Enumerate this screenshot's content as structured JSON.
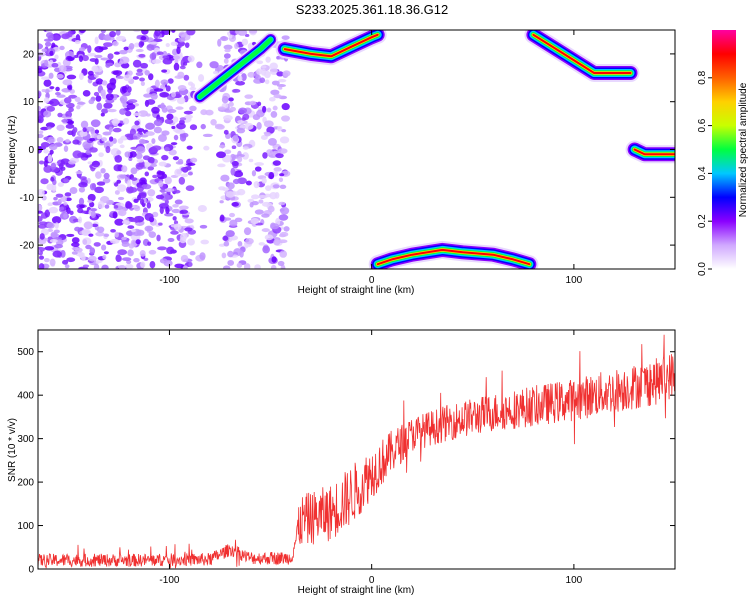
{
  "title": "S233.2025.361.18.36.G12",
  "chart_data": [
    {
      "type": "heatmap",
      "xlabel": "Height of straight line (km)",
      "ylabel": "Frequency (Hz)",
      "xlim": [
        -165,
        150
      ],
      "ylim": [
        -25,
        25
      ],
      "xticks": [
        -100,
        0,
        100
      ],
      "yticks": [
        -20,
        -10,
        0,
        10,
        20
      ],
      "colorbar": {
        "label": "Normalized spectral amplitude",
        "range": [
          0,
          1
        ],
        "ticks": [
          0.0,
          0.2,
          0.4,
          0.6,
          0.8
        ],
        "tick_labels": [
          "0.0",
          "0.2",
          "0.4",
          "0.6",
          "0.8"
        ],
        "colors": [
          "#ffffff",
          "#d0a8ff",
          "#8a00ff",
          "#0000ff",
          "#00c8ff",
          "#00ff40",
          "#c8ff00",
          "#ffd000",
          "#ff6000",
          "#ff0000",
          "#ff00a0"
        ]
      },
      "ridges": [
        {
          "points": [
            [
              -43,
              21
            ],
            [
              -30,
              20
            ],
            [
              -20,
              19.5
            ],
            [
              -10,
              21.5
            ],
            [
              0,
              23.5
            ],
            [
              3,
              24
            ]
          ]
        },
        {
          "points": [
            [
              80,
              24
            ],
            [
              95,
              20
            ],
            [
              110,
              16
            ],
            [
              128,
              16
            ]
          ]
        },
        {
          "points": [
            [
              130,
              0
            ],
            [
              135,
              -1
            ],
            [
              150,
              -1
            ]
          ]
        },
        {
          "points": [
            [
              3,
              -24
            ],
            [
              10,
              -23
            ],
            [
              20,
              -22
            ],
            [
              35,
              -21
            ],
            [
              45,
              -21.5
            ],
            [
              60,
              -22
            ],
            [
              70,
              -23
            ],
            [
              78,
              -24
            ]
          ]
        },
        {
          "points": [
            [
              -85,
              11
            ],
            [
              -70,
              16
            ],
            [
              -55,
              21
            ],
            [
              -50,
              23
            ]
          ]
        }
      ],
      "noise_region": {
        "x": [
          -165,
          -42
        ],
        "y": [
          -25,
          25
        ]
      }
    },
    {
      "type": "line",
      "xlabel": "Height of straight line (km)",
      "ylabel": "SNR (10 * v/v)",
      "xlim": [
        -165,
        150
      ],
      "ylim": [
        0,
        550
      ],
      "xticks": [
        -100,
        0,
        100
      ],
      "yticks": [
        0,
        100,
        200,
        300,
        400,
        500
      ],
      "color": "#f03030",
      "trend": [
        [
          -165,
          20
        ],
        [
          -120,
          20
        ],
        [
          -80,
          22
        ],
        [
          -70,
          45
        ],
        [
          -60,
          25
        ],
        [
          -40,
          25
        ],
        [
          -35,
          110
        ],
        [
          -20,
          130
        ],
        [
          -10,
          170
        ],
        [
          0,
          220
        ],
        [
          10,
          270
        ],
        [
          20,
          310
        ],
        [
          40,
          340
        ],
        [
          60,
          360
        ],
        [
          80,
          375
        ],
        [
          100,
          390
        ],
        [
          120,
          410
        ],
        [
          140,
          430
        ],
        [
          150,
          450
        ]
      ],
      "noise_amplitude": [
        [
          -165,
          15
        ],
        [
          -40,
          15
        ],
        [
          -35,
          60
        ],
        [
          -10,
          70
        ],
        [
          20,
          40
        ],
        [
          150,
          55
        ]
      ]
    }
  ]
}
